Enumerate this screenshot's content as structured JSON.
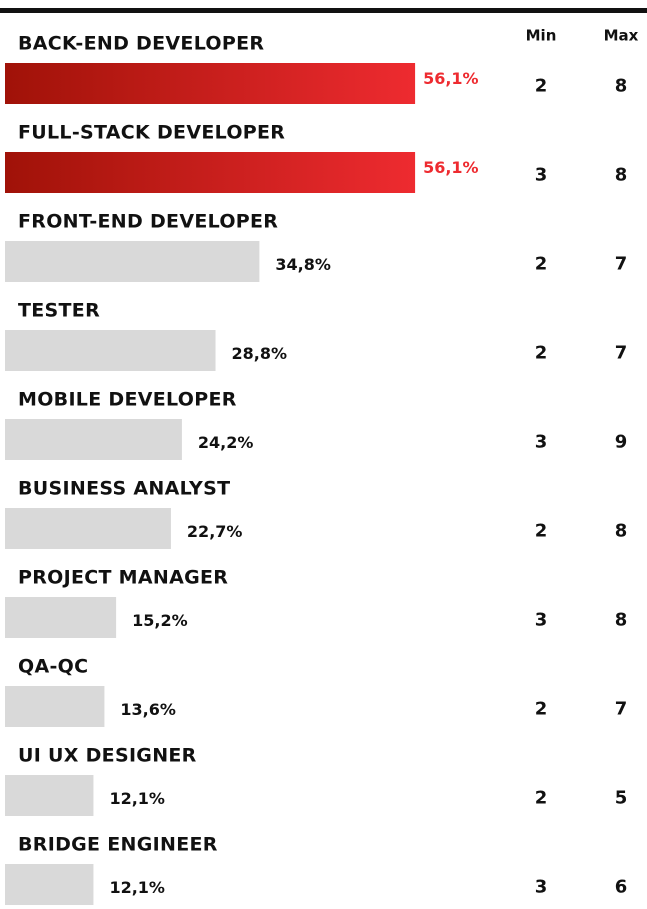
{
  "chart_data": {
    "type": "bar",
    "orientation": "horizontal",
    "categories": [
      "BACK-END DEVELOPER",
      "FULL-STACK DEVELOPER",
      "FRONT-END DEVELOPER",
      "TESTER",
      "MOBILE DEVELOPER",
      "BUSINESS ANALYST",
      "PROJECT MANAGER",
      "QA-QC",
      "UI UX DESIGNER",
      "BRIDGE ENGINEER"
    ],
    "values": [
      56.1,
      56.1,
      34.8,
      28.8,
      24.2,
      22.7,
      15.2,
      13.6,
      12.1,
      12.1
    ],
    "value_labels": [
      "56,1%",
      "56,1%",
      "34,8%",
      "28,8%",
      "24,2%",
      "22,7%",
      "15,2%",
      "13,6%",
      "12,1%",
      "12,1%"
    ],
    "highlight": [
      true,
      true,
      false,
      false,
      false,
      false,
      false,
      false,
      false,
      false
    ],
    "color": "#d9d9d9",
    "highlight_color": "#ee2b30",
    "highlight_color_start": "#a01208",
    "columns": [
      {
        "name": "Min",
        "values": [
          2,
          3,
          2,
          2,
          3,
          2,
          3,
          2,
          2,
          3
        ]
      },
      {
        "name": "Max",
        "values": [
          8,
          8,
          7,
          7,
          9,
          8,
          8,
          7,
          5,
          6
        ]
      }
    ]
  }
}
